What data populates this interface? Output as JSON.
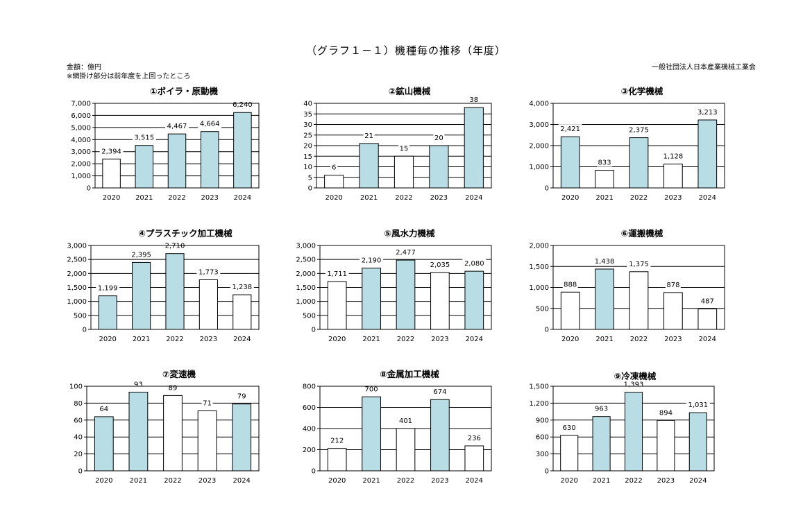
{
  "title": "（グラフ１－１）機種毎の推移（年度）",
  "unit": "金額：億円",
  "note": "※網掛け部分は前年度を上回ったところ",
  "publisher": "一般社団法人日本産業機械工業会",
  "colors": {
    "increase": "#b9dde4",
    "no_increase": "#ffffff",
    "stroke": "#000000",
    "grid": "#000000"
  },
  "chart_data": [
    {
      "type": "bar",
      "title": "①ボイラ・原動機",
      "categories": [
        "2020",
        "2021",
        "2022",
        "2023",
        "2024"
      ],
      "values": [
        2394,
        3515,
        4467,
        4664,
        6240
      ],
      "labels": [
        "2,394",
        "3,515",
        "4,467",
        "4,664",
        "6,240"
      ],
      "shaded": [
        false,
        true,
        true,
        true,
        true
      ],
      "ylim": [
        0,
        7000
      ],
      "yticks": [
        0,
        1000,
        2000,
        3000,
        4000,
        5000,
        6000,
        7000
      ],
      "ytick_labels": [
        "0",
        "1,000",
        "2,000",
        "3,000",
        "4,000",
        "5,000",
        "6,000",
        "7,000"
      ]
    },
    {
      "type": "bar",
      "title": "②鉱山機械",
      "categories": [
        "2020",
        "2021",
        "2022",
        "2023",
        "2024"
      ],
      "values": [
        6,
        21,
        15,
        20,
        38
      ],
      "labels": [
        "6",
        "21",
        "15",
        "20",
        "38"
      ],
      "shaded": [
        false,
        true,
        false,
        true,
        true
      ],
      "ylim": [
        0,
        40
      ],
      "yticks": [
        0,
        5,
        10,
        15,
        20,
        25,
        30,
        35,
        40
      ],
      "ytick_labels": [
        "0",
        "5",
        "10",
        "15",
        "20",
        "25",
        "30",
        "35",
        "40"
      ]
    },
    {
      "type": "bar",
      "title": "③化学機械",
      "categories": [
        "2020",
        "2021",
        "2022",
        "2023",
        "2024"
      ],
      "values": [
        2421,
        833,
        2375,
        1128,
        3213
      ],
      "labels": [
        "2,421",
        "833",
        "2,375",
        "1,128",
        "3,213"
      ],
      "shaded": [
        true,
        false,
        true,
        false,
        true
      ],
      "ylim": [
        0,
        4000
      ],
      "yticks": [
        0,
        1000,
        2000,
        3000,
        4000
      ],
      "ytick_labels": [
        "0",
        "1,000",
        "2,000",
        "3,000",
        "4,000"
      ]
    },
    {
      "type": "bar",
      "title": "④プラスチック加工機械",
      "categories": [
        "2020",
        "2021",
        "2022",
        "2023",
        "2024"
      ],
      "values": [
        1199,
        2395,
        2710,
        1773,
        1238
      ],
      "labels": [
        "1,199",
        "2,395",
        "2,710",
        "1,773",
        "1,238"
      ],
      "shaded": [
        true,
        true,
        true,
        false,
        false
      ],
      "ylim": [
        0,
        3000
      ],
      "yticks": [
        0,
        500,
        1000,
        1500,
        2000,
        2500,
        3000
      ],
      "ytick_labels": [
        "0",
        "500",
        "1,000",
        "1,500",
        "2,000",
        "2,500",
        "3,000"
      ]
    },
    {
      "type": "bar",
      "title": "⑤風水力機械",
      "categories": [
        "2020",
        "2021",
        "2022",
        "2023",
        "2024"
      ],
      "values": [
        1711,
        2190,
        2477,
        2035,
        2080
      ],
      "labels": [
        "1,711",
        "2,190",
        "2,477",
        "2,035",
        "2,080"
      ],
      "shaded": [
        false,
        true,
        true,
        false,
        true
      ],
      "ylim": [
        0,
        3000
      ],
      "yticks": [
        0,
        500,
        1000,
        1500,
        2000,
        2500,
        3000
      ],
      "ytick_labels": [
        "0",
        "500",
        "1,000",
        "1,500",
        "2,000",
        "2,500",
        "3,000"
      ]
    },
    {
      "type": "bar",
      "title": "⑥運搬機械",
      "categories": [
        "2020",
        "2021",
        "2022",
        "2023",
        "2024"
      ],
      "values": [
        888,
        1438,
        1375,
        878,
        487
      ],
      "labels": [
        "888",
        "1,438",
        "1,375",
        "878",
        "487"
      ],
      "shaded": [
        false,
        true,
        false,
        false,
        false
      ],
      "ylim": [
        0,
        2000
      ],
      "yticks": [
        0,
        500,
        1000,
        1500,
        2000
      ],
      "ytick_labels": [
        "0",
        "500",
        "1,000",
        "1,500",
        "2,000"
      ]
    },
    {
      "type": "bar",
      "title": "⑦変速機",
      "categories": [
        "2020",
        "2021",
        "2022",
        "2023",
        "2024"
      ],
      "values": [
        64,
        93,
        89,
        71,
        79
      ],
      "labels": [
        "64",
        "93",
        "89",
        "71",
        "79"
      ],
      "shaded": [
        true,
        true,
        false,
        false,
        true
      ],
      "ylim": [
        0,
        100
      ],
      "yticks": [
        0,
        20,
        40,
        60,
        80,
        100
      ],
      "ytick_labels": [
        "0",
        "20",
        "40",
        "60",
        "80",
        "100"
      ]
    },
    {
      "type": "bar",
      "title": "⑧金属加工機械",
      "categories": [
        "2020",
        "2021",
        "2022",
        "2023",
        "2024"
      ],
      "values": [
        212,
        700,
        401,
        674,
        236
      ],
      "labels": [
        "212",
        "700",
        "401",
        "674",
        "236"
      ],
      "shaded": [
        false,
        true,
        false,
        true,
        false
      ],
      "ylim": [
        0,
        800
      ],
      "yticks": [
        0,
        200,
        400,
        600,
        800
      ],
      "ytick_labels": [
        "0",
        "200",
        "400",
        "600",
        "800"
      ]
    },
    {
      "type": "bar",
      "title": "⑨冷凍機械",
      "categories": [
        "2020",
        "2021",
        "2022",
        "2023",
        "2024"
      ],
      "values": [
        630,
        963,
        1393,
        894,
        1031
      ],
      "labels": [
        "630",
        "963",
        "1,393",
        "894",
        "1,031"
      ],
      "shaded": [
        false,
        true,
        true,
        false,
        true
      ],
      "ylim": [
        0,
        1500
      ],
      "yticks": [
        0,
        300,
        600,
        900,
        1200,
        1500
      ],
      "ytick_labels": [
        "0",
        "300",
        "600",
        "900",
        "1,200",
        "1,500"
      ]
    }
  ]
}
